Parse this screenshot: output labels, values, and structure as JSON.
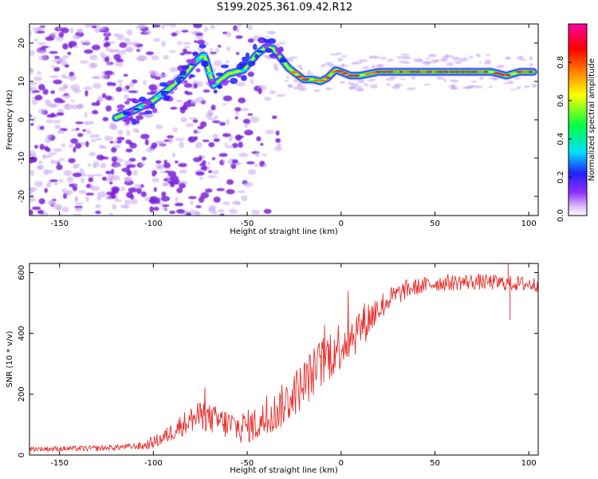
{
  "title": "S199.2025.361.09.42.R12",
  "colors": {
    "snr_line": "#e8302e",
    "ridge_core": "#e83030",
    "scatter_main": "#7a22d8",
    "scatter_light": "#c9a6f2"
  },
  "chart_data": [
    {
      "type": "heatmap",
      "name": "spectrogram",
      "xlabel": "Height of straight line (km)",
      "ylabel": "Frequency (Hz)",
      "xlim": [
        -166,
        105
      ],
      "ylim": [
        -25,
        25
      ],
      "xticks": [
        -150,
        -100,
        -50,
        0,
        50,
        100
      ],
      "yticks": [
        -20,
        -10,
        0,
        10,
        20
      ],
      "colorbar": {
        "label": "Normalized spectral amplitude",
        "range": [
          0,
          1
        ],
        "ticks": [
          0.0,
          0.2,
          0.4,
          0.6,
          0.8
        ],
        "tick_labels": [
          "0.0",
          "0.2",
          "0.4",
          "0.6",
          "0.8"
        ],
        "colormap": [
          "#ffffff",
          "#d8b8f8",
          "#9030ff",
          "#2020ff",
          "#00e0ff",
          "#00ff40",
          "#ffff00",
          "#ff8000",
          "#ff0000",
          "#ff00a0"
        ]
      },
      "ridge": {
        "x": [
          -120,
          -110,
          -100,
          -92,
          -85,
          -78,
          -73,
          -68,
          -60,
          -52,
          -45,
          -40,
          -36,
          -32,
          -28,
          -24,
          -20,
          -15,
          -11,
          -7,
          -3,
          0,
          5,
          10,
          20,
          40,
          60,
          80,
          88,
          95,
          103
        ],
        "y": [
          0.5,
          2.5,
          5,
          8,
          11,
          15,
          17,
          9,
          12,
          13,
          17,
          19,
          18.5,
          16,
          13.5,
          12,
          10.5,
          10.5,
          10,
          11,
          13,
          12.5,
          11.5,
          11.5,
          12.5,
          12.5,
          12.5,
          12.5,
          11.5,
          12.5,
          12.5
        ]
      }
    },
    {
      "type": "line",
      "name": "snr",
      "xlabel": "Height of straight line (km)",
      "ylabel": "SNR (10 * v/v)",
      "xlim": [
        -166,
        105
      ],
      "ylim": [
        0,
        630
      ],
      "xticks": [
        -150,
        -100,
        -50,
        0,
        50,
        100
      ],
      "yticks": [
        0,
        200,
        400,
        600
      ],
      "trend": {
        "x": [
          -166,
          -130,
          -105,
          -95,
          -85,
          -75,
          -65,
          -55,
          -45,
          -35,
          -25,
          -15,
          -5,
          5,
          15,
          25,
          35,
          50,
          70,
          90,
          105
        ],
        "y": [
          20,
          22,
          30,
          55,
          100,
          130,
          110,
          90,
          100,
          140,
          200,
          270,
          340,
          390,
          450,
          510,
          545,
          565,
          570,
          565,
          560
        ]
      },
      "noise_amplitude": {
        "x": [
          -166,
          -110,
          -95,
          -80,
          -65,
          -50,
          -35,
          -20,
          -5,
          10,
          25,
          40,
          105
        ],
        "y": [
          8,
          10,
          25,
          45,
          50,
          55,
          70,
          80,
          90,
          75,
          40,
          28,
          25
        ]
      },
      "features": [
        {
          "x": 90,
          "y": 445,
          "label": "dip"
        },
        {
          "x": 89,
          "y": 630,
          "label": "peak"
        }
      ]
    }
  ]
}
